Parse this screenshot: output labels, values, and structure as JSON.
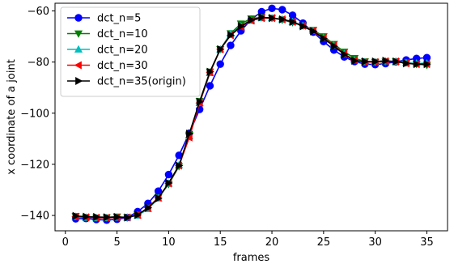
{
  "chart_data": {
    "type": "line",
    "title": "",
    "xlabel": "frames",
    "ylabel": "x coordinate of a joint",
    "xlim": [
      -1.0,
      37.0
    ],
    "ylim": [
      -146,
      -57
    ],
    "xticks": [
      0,
      5,
      10,
      15,
      20,
      25,
      30,
      35
    ],
    "xtick_labels": [
      "0",
      "5",
      "10",
      "15",
      "20",
      "25",
      "30",
      "35"
    ],
    "yticks": [
      -140,
      -120,
      -100,
      -80,
      -60
    ],
    "ytick_labels": [
      "−140",
      "−120",
      "−100",
      "−80",
      "−60"
    ],
    "grid": false,
    "legend_position": "upper-left",
    "x": [
      1,
      2,
      3,
      4,
      5,
      6,
      7,
      8,
      9,
      10,
      11,
      12,
      13,
      14,
      15,
      16,
      17,
      18,
      19,
      20,
      21,
      22,
      23,
      24,
      25,
      26,
      27,
      28,
      29,
      30,
      31,
      32,
      33,
      34,
      35
    ],
    "series": [
      {
        "name": "dct_n=5",
        "color": "#0000ff",
        "marker": "circle",
        "values": [
          -141.3,
          -141.2,
          -141.6,
          -141.8,
          -141.5,
          -140.8,
          -138.5,
          -135.3,
          -130.5,
          -124.0,
          -116.5,
          -107.8,
          -98.5,
          -89.3,
          -80.8,
          -73.5,
          -67.8,
          -63.3,
          -60.3,
          -59.0,
          -59.5,
          -61.7,
          -64.8,
          -68.3,
          -72.0,
          -75.3,
          -78.0,
          -79.8,
          -80.8,
          -81.0,
          -80.6,
          -79.9,
          -79.2,
          -78.6,
          -78.3
        ]
      },
      {
        "name": "dct_n=10",
        "color": "#008000",
        "marker": "triangle-down",
        "values": [
          -140.3,
          -140.8,
          -140.9,
          -140.8,
          -140.5,
          -140.8,
          -139.8,
          -137.0,
          -133.0,
          -127.8,
          -120.8,
          -108.5,
          -95.3,
          -83.8,
          -75.0,
          -68.8,
          -65.0,
          -63.0,
          -62.5,
          -62.8,
          -63.5,
          -64.5,
          -65.8,
          -67.5,
          -70.0,
          -73.0,
          -76.0,
          -78.5,
          -79.8,
          -80.0,
          -79.9,
          -79.8,
          -80.2,
          -80.8,
          -81.2
        ]
      },
      {
        "name": "dct_n=20",
        "color": "#00bfbf",
        "marker": "triangle-up",
        "values": [
          -140.5,
          -140.8,
          -141.0,
          -141.0,
          -140.8,
          -140.8,
          -140.0,
          -137.5,
          -133.3,
          -127.5,
          -120.3,
          -109.0,
          -96.0,
          -84.3,
          -75.0,
          -69.0,
          -66.0,
          -63.8,
          -62.8,
          -62.8,
          -63.3,
          -64.3,
          -65.8,
          -67.8,
          -70.5,
          -73.5,
          -76.8,
          -79.3,
          -80.0,
          -80.0,
          -79.7,
          -79.8,
          -80.3,
          -80.5,
          -80.5
        ]
      },
      {
        "name": "dct_n=30",
        "color": "#ff0000",
        "marker": "triangle-left",
        "values": [
          -140.5,
          -140.7,
          -140.9,
          -140.9,
          -140.8,
          -140.8,
          -139.8,
          -137.0,
          -133.0,
          -127.5,
          -120.5,
          -109.5,
          -96.0,
          -84.0,
          -75.0,
          -69.5,
          -66.3,
          -63.8,
          -62.8,
          -62.8,
          -63.3,
          -64.3,
          -65.8,
          -67.8,
          -70.5,
          -73.5,
          -76.8,
          -79.3,
          -80.0,
          -80.0,
          -79.7,
          -79.8,
          -80.5,
          -80.8,
          -80.8
        ]
      },
      {
        "name": "dct_n=35(origin)",
        "color": "#000000",
        "marker": "triangle-right",
        "values": [
          -140.2,
          -140.5,
          -140.6,
          -140.7,
          -140.6,
          -140.8,
          -139.8,
          -137.0,
          -133.3,
          -127.3,
          -120.5,
          -108.0,
          -95.5,
          -83.8,
          -75.0,
          -69.5,
          -66.0,
          -63.5,
          -62.5,
          -62.8,
          -63.3,
          -64.3,
          -66.0,
          -68.0,
          -70.8,
          -73.8,
          -77.0,
          -79.5,
          -79.8,
          -79.8,
          -79.5,
          -79.8,
          -80.5,
          -80.8,
          -80.8
        ]
      }
    ]
  }
}
